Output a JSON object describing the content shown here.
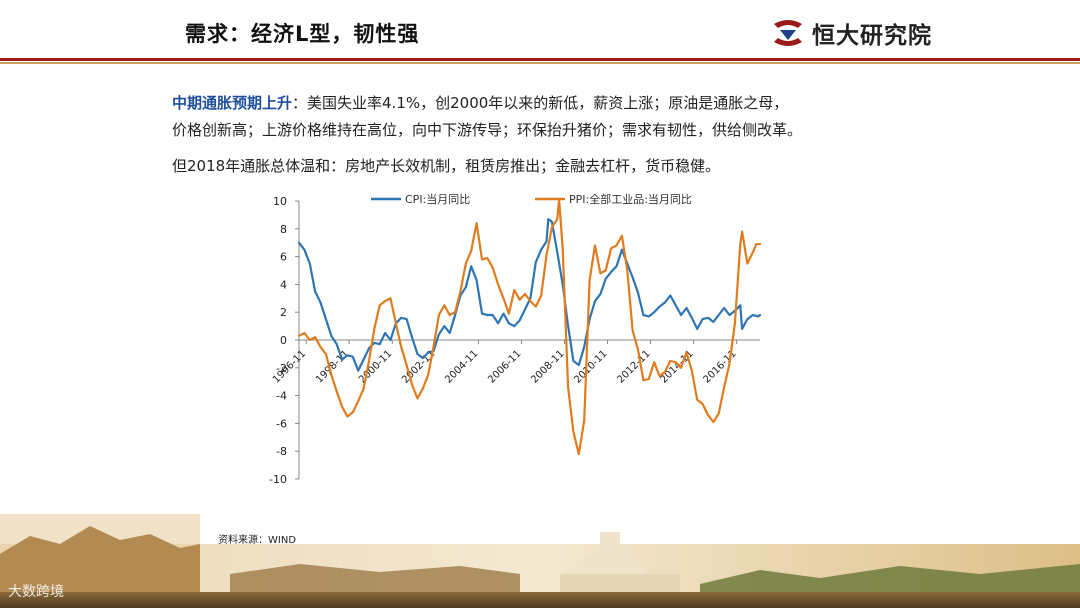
{
  "header": {
    "title": "需求：经济L型，韧性强",
    "logo_text": "恒大研究院"
  },
  "body": {
    "para1_lead": "中期通胀预期上升",
    "para1_rest": "：美国失业率4.1%，创2000年以来的新低，薪资上涨；原油是通胀之母，",
    "para2": "价格创新高；上游价格维持在高位，向中下游传导；环保抬升猪价；需求有韧性，供给侧改革。",
    "para3": "但2018年通胀总体温和：房地产长效机制，租赁房推出；金融去杠杆，货币稳健。"
  },
  "source": "资料来源：WIND",
  "watermark": "大数跨境",
  "colors": {
    "cpi": "#2e75b6",
    "ppi": "#e07b1f",
    "brand": "#9b1b1b"
  },
  "chart_data": {
    "type": "line",
    "ylim": [
      -10,
      10
    ],
    "yticks": [
      10,
      8,
      6,
      4,
      2,
      0,
      -2,
      -4,
      -6,
      -8,
      -10
    ],
    "xlim": [
      "1996-07",
      "2017-12"
    ],
    "xticks": [
      "1996-11",
      "1998-11",
      "2000-11",
      "2002-11",
      "2004-11",
      "2006-11",
      "2008-11",
      "2010-11",
      "2012-11",
      "2014-11",
      "2016-11"
    ],
    "legend_position": "top",
    "grid": false,
    "series": [
      {
        "name": "CPI:当月同比",
        "points": [
          [
            "1996-07",
            7.0
          ],
          [
            "1996-10",
            6.5
          ],
          [
            "1997-01",
            5.5
          ],
          [
            "1997-04",
            3.5
          ],
          [
            "1997-07",
            2.7
          ],
          [
            "1997-10",
            1.5
          ],
          [
            "1998-01",
            0.3
          ],
          [
            "1998-04",
            -0.3
          ],
          [
            "1998-07",
            -1.4
          ],
          [
            "1998-10",
            -1.1
          ],
          [
            "1999-01",
            -1.2
          ],
          [
            "1999-04",
            -2.2
          ],
          [
            "1999-07",
            -1.4
          ],
          [
            "1999-10",
            -0.6
          ],
          [
            "2000-01",
            -0.2
          ],
          [
            "2000-04",
            -0.3
          ],
          [
            "2000-07",
            0.5
          ],
          [
            "2000-10",
            0.0
          ],
          [
            "2001-01",
            1.2
          ],
          [
            "2001-04",
            1.6
          ],
          [
            "2001-07",
            1.5
          ],
          [
            "2001-10",
            0.2
          ],
          [
            "2002-01",
            -1.0
          ],
          [
            "2002-04",
            -1.3
          ],
          [
            "2002-07",
            -0.9
          ],
          [
            "2002-10",
            -0.8
          ],
          [
            "2003-01",
            0.4
          ],
          [
            "2003-04",
            1.0
          ],
          [
            "2003-07",
            0.5
          ],
          [
            "2003-10",
            1.8
          ],
          [
            "2004-01",
            3.2
          ],
          [
            "2004-04",
            3.8
          ],
          [
            "2004-07",
            5.3
          ],
          [
            "2004-10",
            4.3
          ],
          [
            "2005-01",
            1.9
          ],
          [
            "2005-04",
            1.8
          ],
          [
            "2005-07",
            1.8
          ],
          [
            "2005-10",
            1.2
          ],
          [
            "2006-01",
            1.9
          ],
          [
            "2006-04",
            1.2
          ],
          [
            "2006-07",
            1.0
          ],
          [
            "2006-10",
            1.4
          ],
          [
            "2007-01",
            2.2
          ],
          [
            "2007-04",
            3.0
          ],
          [
            "2007-07",
            5.6
          ],
          [
            "2007-10",
            6.5
          ],
          [
            "2008-01",
            7.1
          ],
          [
            "2008-02",
            8.7
          ],
          [
            "2008-04",
            8.5
          ],
          [
            "2008-07",
            6.3
          ],
          [
            "2008-10",
            4.0
          ],
          [
            "2009-01",
            1.0
          ],
          [
            "2009-04",
            -1.5
          ],
          [
            "2009-07",
            -1.8
          ],
          [
            "2009-10",
            -0.5
          ],
          [
            "2010-01",
            1.5
          ],
          [
            "2010-04",
            2.8
          ],
          [
            "2010-07",
            3.3
          ],
          [
            "2010-10",
            4.4
          ],
          [
            "2011-01",
            4.9
          ],
          [
            "2011-04",
            5.3
          ],
          [
            "2011-07",
            6.5
          ],
          [
            "2011-10",
            5.5
          ],
          [
            "2012-01",
            4.5
          ],
          [
            "2012-04",
            3.4
          ],
          [
            "2012-07",
            1.8
          ],
          [
            "2012-10",
            1.7
          ],
          [
            "2013-01",
            2.0
          ],
          [
            "2013-04",
            2.4
          ],
          [
            "2013-07",
            2.7
          ],
          [
            "2013-10",
            3.2
          ],
          [
            "2014-01",
            2.5
          ],
          [
            "2014-04",
            1.8
          ],
          [
            "2014-07",
            2.3
          ],
          [
            "2014-10",
            1.6
          ],
          [
            "2015-01",
            0.8
          ],
          [
            "2015-04",
            1.5
          ],
          [
            "2015-07",
            1.6
          ],
          [
            "2015-10",
            1.3
          ],
          [
            "2016-01",
            1.8
          ],
          [
            "2016-04",
            2.3
          ],
          [
            "2016-07",
            1.8
          ],
          [
            "2016-10",
            2.1
          ],
          [
            "2017-01",
            2.5
          ],
          [
            "2017-02",
            0.8
          ],
          [
            "2017-05",
            1.5
          ],
          [
            "2017-08",
            1.8
          ],
          [
            "2017-11",
            1.7
          ],
          [
            "2017-12",
            1.8
          ]
        ]
      },
      {
        "name": "PPI:全部工业品:当月同比",
        "points": [
          [
            "1996-07",
            0.3
          ],
          [
            "1996-10",
            0.5
          ],
          [
            "1997-01",
            0.0
          ],
          [
            "1997-04",
            0.2
          ],
          [
            "1997-07",
            -0.5
          ],
          [
            "1997-10",
            -1.0
          ],
          [
            "1998-01",
            -2.5
          ],
          [
            "1998-04",
            -3.7
          ],
          [
            "1998-07",
            -4.8
          ],
          [
            "1998-10",
            -5.5
          ],
          [
            "1999-01",
            -5.2
          ],
          [
            "1999-04",
            -4.4
          ],
          [
            "1999-07",
            -3.5
          ],
          [
            "1999-10",
            -1.5
          ],
          [
            "2000-01",
            0.8
          ],
          [
            "2000-04",
            2.5
          ],
          [
            "2000-07",
            2.8
          ],
          [
            "2000-10",
            3.0
          ],
          [
            "2001-01",
            1.2
          ],
          [
            "2001-04",
            -0.5
          ],
          [
            "2001-07",
            -1.8
          ],
          [
            "2001-10",
            -3.2
          ],
          [
            "2002-01",
            -4.2
          ],
          [
            "2002-04",
            -3.5
          ],
          [
            "2002-07",
            -2.5
          ],
          [
            "2002-10",
            -0.5
          ],
          [
            "2003-01",
            1.8
          ],
          [
            "2003-04",
            2.5
          ],
          [
            "2003-07",
            1.8
          ],
          [
            "2003-10",
            2.0
          ],
          [
            "2004-01",
            3.5
          ],
          [
            "2004-04",
            5.5
          ],
          [
            "2004-07",
            6.4
          ],
          [
            "2004-10",
            8.4
          ],
          [
            "2005-01",
            5.8
          ],
          [
            "2005-04",
            5.9
          ],
          [
            "2005-07",
            5.2
          ],
          [
            "2005-10",
            4.0
          ],
          [
            "2006-01",
            3.0
          ],
          [
            "2006-04",
            1.9
          ],
          [
            "2006-07",
            3.6
          ],
          [
            "2006-10",
            2.9
          ],
          [
            "2007-01",
            3.3
          ],
          [
            "2007-04",
            2.8
          ],
          [
            "2007-07",
            2.4
          ],
          [
            "2007-10",
            3.2
          ],
          [
            "2008-01",
            6.1
          ],
          [
            "2008-04",
            8.1
          ],
          [
            "2008-07",
            8.7
          ],
          [
            "2008-08",
            10.1
          ],
          [
            "2008-10",
            6.6
          ],
          [
            "2009-01",
            -3.4
          ],
          [
            "2009-04",
            -6.6
          ],
          [
            "2009-07",
            -8.2
          ],
          [
            "2009-10",
            -5.8
          ],
          [
            "2010-01",
            4.3
          ],
          [
            "2010-04",
            6.8
          ],
          [
            "2010-07",
            4.8
          ],
          [
            "2010-10",
            5.0
          ],
          [
            "2011-01",
            6.6
          ],
          [
            "2011-04",
            6.8
          ],
          [
            "2011-07",
            7.5
          ],
          [
            "2011-10",
            5.0
          ],
          [
            "2012-01",
            0.7
          ],
          [
            "2012-04",
            -0.7
          ],
          [
            "2012-07",
            -2.9
          ],
          [
            "2012-10",
            -2.8
          ],
          [
            "2013-01",
            -1.6
          ],
          [
            "2013-04",
            -2.6
          ],
          [
            "2013-07",
            -2.3
          ],
          [
            "2013-10",
            -1.5
          ],
          [
            "2014-01",
            -1.6
          ],
          [
            "2014-04",
            -2.0
          ],
          [
            "2014-07",
            -0.9
          ],
          [
            "2014-10",
            -2.2
          ],
          [
            "2015-01",
            -4.3
          ],
          [
            "2015-04",
            -4.6
          ],
          [
            "2015-07",
            -5.4
          ],
          [
            "2015-10",
            -5.9
          ],
          [
            "2016-01",
            -5.3
          ],
          [
            "2016-04",
            -3.4
          ],
          [
            "2016-07",
            -1.7
          ],
          [
            "2016-10",
            1.2
          ],
          [
            "2017-01",
            6.9
          ],
          [
            "2017-02",
            7.8
          ],
          [
            "2017-05",
            5.5
          ],
          [
            "2017-08",
            6.3
          ],
          [
            "2017-10",
            6.9
          ],
          [
            "2017-12",
            6.9
          ]
        ]
      }
    ]
  }
}
